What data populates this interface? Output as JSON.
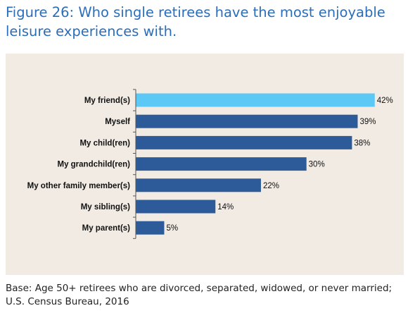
{
  "colors": {
    "title": "#2a6ebb",
    "panel_bg": "#f1ebe4",
    "bar": "#2d5b9a",
    "highlight": "#5bc8f5",
    "axis": "#555555",
    "text": "#111111"
  },
  "title": "Figure 26: Who single retirees have the most enjoyable leisure experiences with.",
  "footnote": "Base: Age 50+ retirees who are divorced, separated, widowed, or never married; U.S. Census Bureau, 2016",
  "chart_data": {
    "type": "bar",
    "orientation": "horizontal",
    "categories": [
      "My friend(s)",
      "Myself",
      "My child(ren)",
      "My grandchild(ren)",
      "My other family member(s)",
      "My sibling(s)",
      "My parent(s)"
    ],
    "values": [
      42,
      39,
      38,
      30,
      22,
      14,
      5
    ],
    "value_suffix": "%",
    "data_labels": [
      "42%",
      "39%",
      "38%",
      "30%",
      "22%",
      "14%",
      "5%"
    ],
    "highlight_index": 0,
    "xlim": [
      0,
      45
    ],
    "grid": false,
    "legend": "none"
  }
}
